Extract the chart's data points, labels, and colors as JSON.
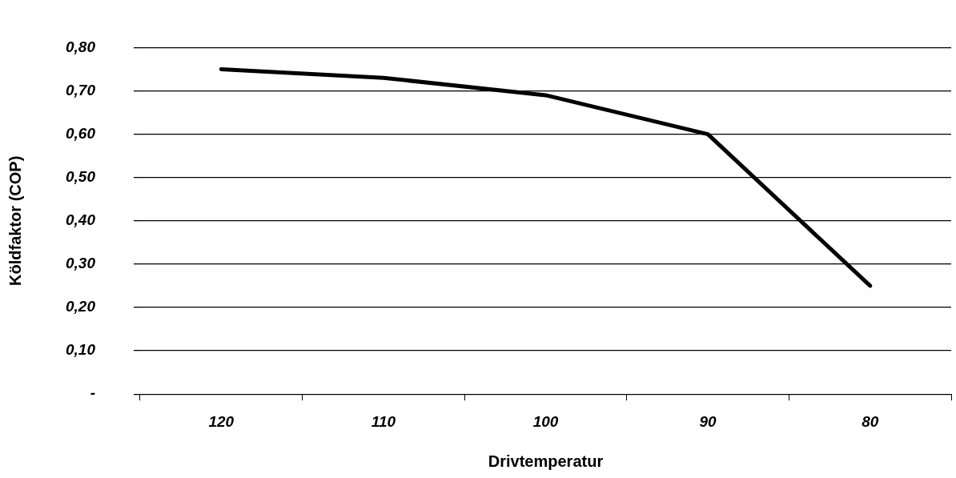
{
  "chart_data": {
    "type": "line",
    "xlabel": "Drivtemperatur",
    "ylabel": "Köldfaktor (COP)",
    "categories": [
      "120",
      "110",
      "100",
      "90",
      "80"
    ],
    "series": [
      {
        "color": "#000000",
        "values": [
          0.75,
          0.73,
          0.69,
          0.6,
          0.25
        ]
      }
    ],
    "ylim": [
      0,
      0.8
    ],
    "yticks": [
      {
        "value": 0,
        "label": "-"
      },
      {
        "value": 0.1,
        "label": "0,10"
      },
      {
        "value": 0.2,
        "label": "0,20"
      },
      {
        "value": 0.3,
        "label": "0,30"
      },
      {
        "value": 0.4,
        "label": "0,40"
      },
      {
        "value": 0.5,
        "label": "0,50"
      },
      {
        "value": 0.6,
        "label": "0,60"
      },
      {
        "value": 0.7,
        "label": "0,70"
      },
      {
        "value": 0.8,
        "label": "0,80"
      }
    ],
    "grid": "y",
    "legend": false,
    "marker": "none",
    "line_style": "solid"
  }
}
